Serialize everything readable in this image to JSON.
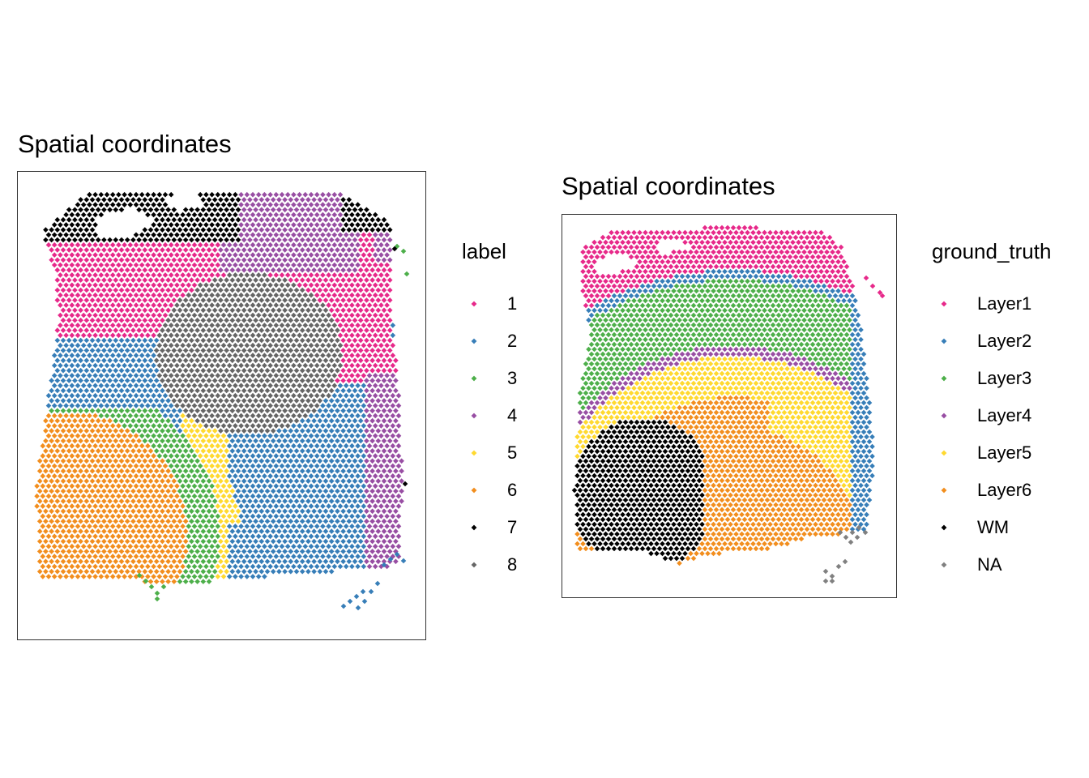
{
  "chart_data": [
    {
      "type": "scatter",
      "title": "Spatial coordinates",
      "legend_title": "label",
      "legend_position": "right",
      "grid": false,
      "axes_visible": false,
      "panel_border": true,
      "point_shape": "diamond",
      "categories": [
        "1",
        "2",
        "3",
        "4",
        "5",
        "6",
        "7",
        "8"
      ],
      "colors": {
        "1": "#E7298A",
        "2": "#377EB8",
        "3": "#4DAF4A",
        "4": "#984EA3",
        "5": "#FFD92F",
        "6": "#F28E1E",
        "7": "#000000",
        "8": "#666666"
      }
    },
    {
      "type": "scatter",
      "title": "Spatial coordinates",
      "legend_title": "ground_truth",
      "legend_position": "right",
      "grid": false,
      "axes_visible": false,
      "panel_border": true,
      "point_shape": "diamond",
      "categories": [
        "Layer1",
        "Layer2",
        "Layer3",
        "Layer4",
        "Layer5",
        "Layer6",
        "WM",
        "NA"
      ],
      "colors": {
        "Layer1": "#E7298A",
        "Layer2": "#377EB8",
        "Layer3": "#4DAF4A",
        "Layer4": "#984EA3",
        "Layer5": "#FFD92F",
        "Layer6": "#F28E1E",
        "WM": "#000000",
        "NA": "#808080"
      }
    }
  ]
}
